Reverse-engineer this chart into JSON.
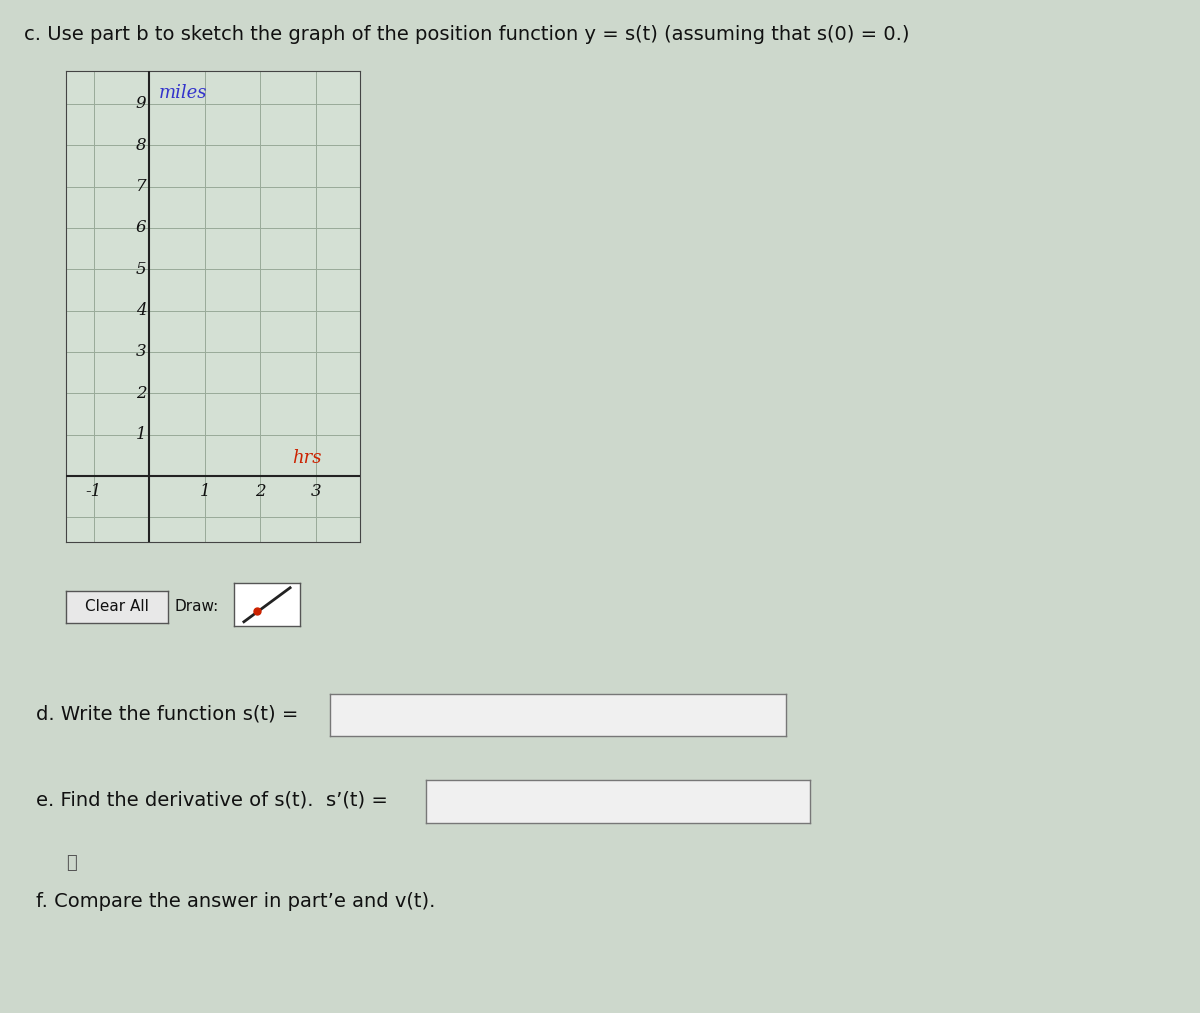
{
  "title_text": "c. Use part b to sketch the graph of the position function y = s(t) (assuming that s(0) = 0.)",
  "ylabel_text": "miles",
  "ylabel_color": "#3333cc",
  "xlabel_text": "hrs",
  "xlabel_color": "#cc2200",
  "yticks": [
    1,
    2,
    3,
    4,
    5,
    6,
    7,
    8,
    9
  ],
  "xticks": [
    -1,
    1,
    2,
    3
  ],
  "xlim": [
    -1.5,
    3.8
  ],
  "ylim": [
    -1.6,
    9.8
  ],
  "grid_color": "#99aa99",
  "axis_color": "#222222",
  "background_color": "#cdd8cc",
  "graph_bg": "#d4e0d4",
  "label_d": "d. Write the function s(t) =",
  "label_e": "e. Find the derivative of s(t).  s’(t) =",
  "label_f": "f. Compare the answer in part’e and v(t).",
  "clear_all_text": "Clear All",
  "draw_text": "Draw:",
  "title_fontsize": 14,
  "tick_fontsize": 12,
  "label_fontsize": 14,
  "box_facecolor": "#f0f0f0",
  "box_edgecolor": "#777777"
}
